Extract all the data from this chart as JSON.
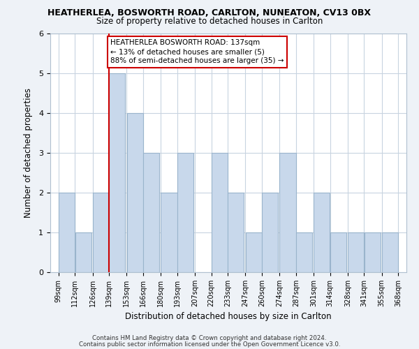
{
  "title": "HEATHERLEA, BOSWORTH ROAD, CARLTON, NUNEATON, CV13 0BX",
  "subtitle": "Size of property relative to detached houses in Carlton",
  "xlabel": "Distribution of detached houses by size in Carlton",
  "ylabel": "Number of detached properties",
  "bar_color": "#c8d8eb",
  "bar_edge_color": "#9ab4cc",
  "bins": [
    99,
    112,
    126,
    139,
    153,
    166,
    180,
    193,
    207,
    220,
    233,
    247,
    260,
    274,
    287,
    301,
    314,
    328,
    341,
    355,
    368
  ],
  "counts": [
    2,
    1,
    2,
    5,
    4,
    3,
    2,
    3,
    0,
    3,
    2,
    1,
    2,
    3,
    1,
    2,
    1,
    1,
    1,
    1
  ],
  "tick_labels": [
    "99sqm",
    "112sqm",
    "126sqm",
    "139sqm",
    "153sqm",
    "166sqm",
    "180sqm",
    "193sqm",
    "207sqm",
    "220sqm",
    "233sqm",
    "247sqm",
    "260sqm",
    "274sqm",
    "287sqm",
    "301sqm",
    "314sqm",
    "328sqm",
    "341sqm",
    "355sqm",
    "368sqm"
  ],
  "ylim": [
    0,
    6
  ],
  "yticks": [
    0,
    1,
    2,
    3,
    4,
    5,
    6
  ],
  "property_line_bin_idx": 3,
  "annotation_title": "HEATHERLEA BOSWORTH ROAD: 137sqm",
  "annotation_line1": "← 13% of detached houses are smaller (5)",
  "annotation_line2": "88% of semi-detached houses are larger (35) →",
  "footer1": "Contains HM Land Registry data © Crown copyright and database right 2024.",
  "footer2": "Contains public sector information licensed under the Open Government Licence v3.0.",
  "background_color": "#eef2f7",
  "plot_background": "#ffffff",
  "grid_color": "#c8d4e0"
}
